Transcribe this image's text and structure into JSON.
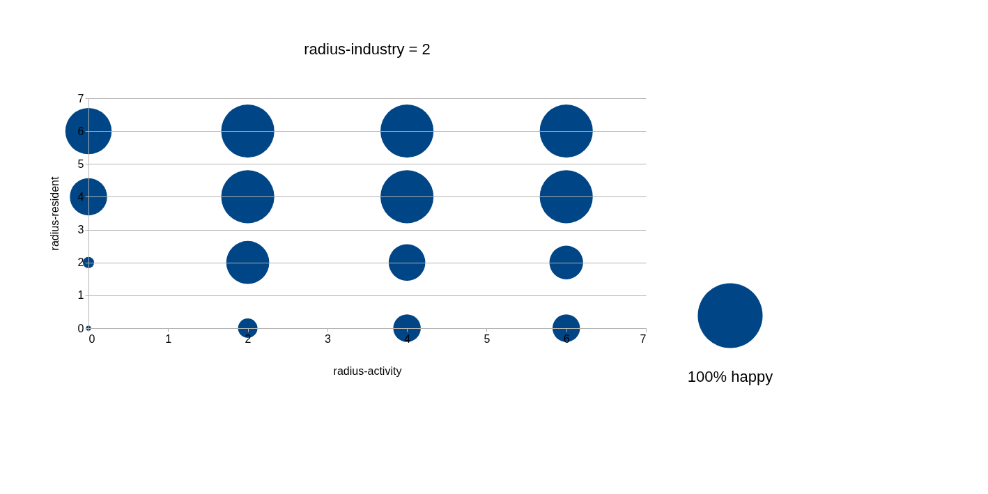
{
  "chart_data": {
    "type": "bubble",
    "title": "radius-industry = 2",
    "xlabel": "radius-activity",
    "ylabel": "radius-resident",
    "x": [
      0,
      2,
      4,
      6,
      0,
      2,
      4,
      6,
      0,
      2,
      4,
      6,
      0,
      2,
      4,
      6
    ],
    "series": [
      {
        "color": "#004586",
        "values": [
          6,
          6,
          6,
          6,
          4,
          4,
          4,
          4,
          2,
          2,
          2,
          2,
          0,
          0,
          0,
          0
        ],
        "sizes": [
          51,
          67,
          67,
          67,
          33,
          67,
          67,
          67,
          3,
          44,
          32,
          27,
          0.6,
          9,
          18,
          18
        ]
      }
    ],
    "size_legend": [
      {
        "value": 100,
        "label": "100% happy"
      }
    ],
    "xlim": [
      0,
      7
    ],
    "xticks": [
      0,
      1,
      2,
      3,
      4,
      5,
      6,
      7
    ],
    "ylim": [
      0,
      7
    ],
    "yticks": [
      0,
      1,
      2,
      3,
      4,
      5,
      6,
      7
    ],
    "grid": "y"
  }
}
